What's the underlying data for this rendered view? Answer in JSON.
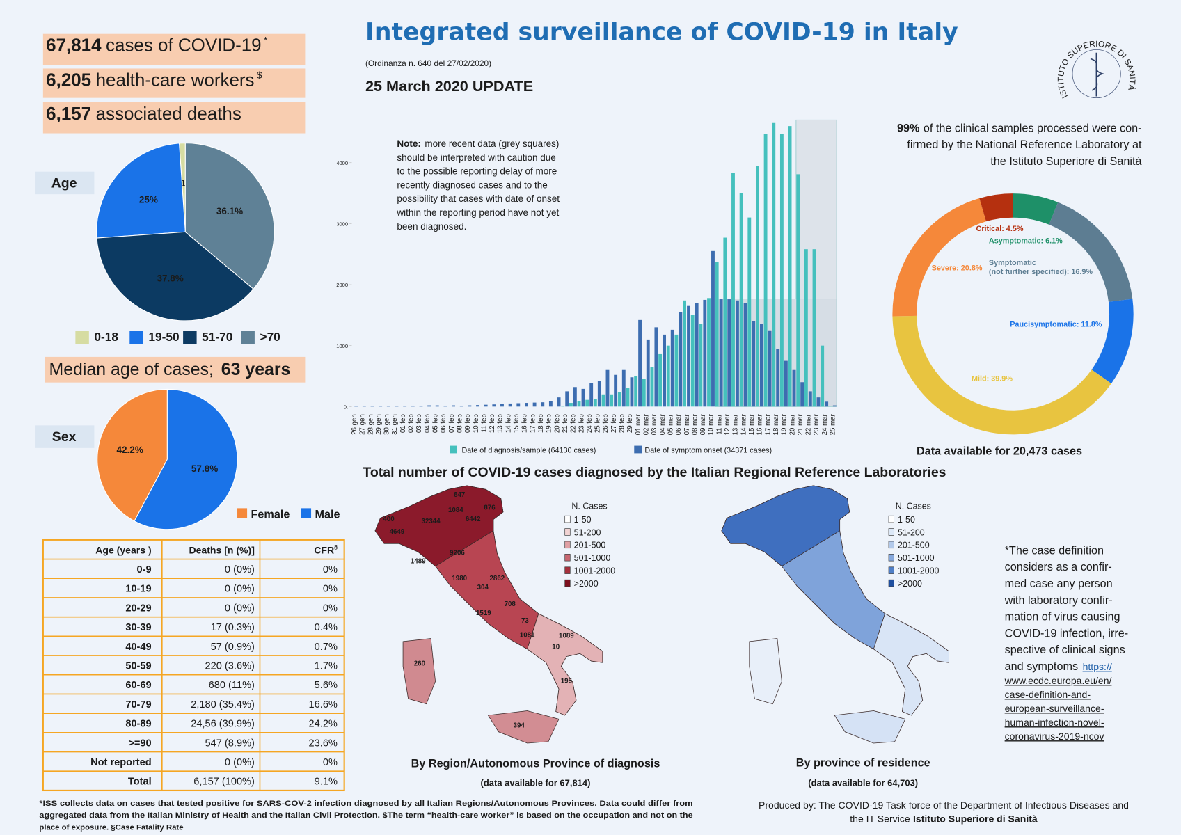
{
  "header": {
    "title": "Integrated surveillance of COVID-19 in Italy",
    "ordinance": "(Ordinanza n. 640 del 27/02/2020)",
    "update": "25 March 2020 UPDATE"
  },
  "logo": {
    "text": "ISTITUTO SUPERIORE DI SANITÀ"
  },
  "stats": [
    {
      "value": "67,814",
      "text": "cases of COVID-19",
      "sup": "*"
    },
    {
      "value": "6,205",
      "text": "health-care workers",
      "sup": "$"
    },
    {
      "value": "6,157",
      "text": "associated deaths"
    }
  ],
  "median_age": {
    "text": "Median age of cases;",
    "value": "63 years"
  },
  "panel_labels": {
    "age": "Age",
    "sex": "Sex"
  },
  "chart_data": [
    {
      "type": "pie",
      "categories": [
        "0-18",
        "19-50",
        "51-70",
        ">70"
      ],
      "values": [
        1.1,
        25,
        37.8,
        36.1
      ],
      "value_labels": [
        "1.1%",
        "25%",
        "37.8%",
        "36.1%"
      ],
      "colors": [
        "#d6dca2",
        "#1a73e8",
        "#0c3a62",
        "#5f8196"
      ]
    },
    {
      "type": "pie",
      "categories": [
        "Female",
        "Male"
      ],
      "values": [
        42.2,
        57.8
      ],
      "value_labels": [
        "42.2%",
        "57.8%"
      ],
      "colors": [
        "#f5883a",
        "#1a73e8"
      ]
    },
    {
      "type": "bar",
      "categories": [
        "26 gen",
        "27 gen",
        "28 gen",
        "29 gen",
        "30 gen",
        "31 gen",
        "01 feb",
        "02 feb",
        "03 feb",
        "04 feb",
        "05 feb",
        "06 feb",
        "07 feb",
        "08 feb",
        "09 feb",
        "10 feb",
        "11 feb",
        "12 feb",
        "13 feb",
        "14 feb",
        "15 feb",
        "16 feb",
        "17 feb",
        "18 feb",
        "19 feb",
        "20 feb",
        "21 feb",
        "22 feb",
        "23 feb",
        "24 feb",
        "25 feb",
        "26 feb",
        "27 feb",
        "28 feb",
        "29 feb",
        "01 mar",
        "02 mar",
        "03 mar",
        "04 mar",
        "05 mar",
        "06 mar",
        "07 mar",
        "08 mar",
        "09 mar",
        "10 mar",
        "11 mar",
        "12 mar",
        "13 mar",
        "14 mar",
        "15 mar",
        "16 mar",
        "17 mar",
        "18 mar",
        "19 mar",
        "20 mar",
        "21 mar",
        "22 mar",
        "23 mar",
        "24 mar",
        "25 mar"
      ],
      "series": [
        {
          "name": "Date of diagnosis/sample (64130 cases)",
          "color": "#45c0bd",
          "values": [
            0,
            0,
            0,
            0,
            0,
            0,
            0,
            0,
            0,
            0,
            0,
            0,
            0,
            0,
            0,
            0,
            0,
            0,
            0,
            0,
            0,
            0,
            0,
            0,
            0,
            0,
            15,
            60,
            90,
            110,
            120,
            200,
            200,
            240,
            300,
            500,
            450,
            650,
            860,
            1000,
            1180,
            1740,
            1500,
            1350,
            1780,
            2370,
            2770,
            3830,
            3500,
            3100,
            3950,
            4470,
            4650,
            4470,
            4600,
            3810,
            2580,
            2580,
            1000,
            0
          ]
        },
        {
          "name": "Date of symptom onset (34371 cases)",
          "color": "#3d6db0",
          "values": [
            5,
            5,
            5,
            5,
            5,
            10,
            10,
            15,
            15,
            20,
            20,
            15,
            20,
            15,
            20,
            25,
            30,
            35,
            40,
            50,
            55,
            60,
            65,
            70,
            90,
            150,
            250,
            320,
            290,
            380,
            420,
            600,
            520,
            600,
            480,
            1420,
            1100,
            1300,
            1180,
            1260,
            1550,
            1650,
            1700,
            1750,
            2550,
            1760,
            1760,
            1740,
            1700,
            1400,
            1350,
            1250,
            950,
            750,
            600,
            400,
            250,
            150,
            80,
            20
          ]
        }
      ],
      "ylim": [
        0,
        4700
      ],
      "yticks": [
        {
          "value": 0,
          "label": "0."
        },
        1000,
        2000,
        3000,
        4000
      ],
      "grid": false,
      "note": {
        "bold": "Note:",
        "lines": [
          "more recent data (grey squares)",
          "should be interpreted with caution due",
          "to the possible reporting delay of more",
          "recently diagnosed cases  and to the",
          "possibility that  cases with date of onset",
          "within the reporting period have not yet",
          "been  diagnosed."
        ]
      }
    },
    {
      "type": "donut",
      "title": "Data available for  20,473 cases",
      "values": [
        4.5,
        6.1,
        16.9,
        11.8,
        39.9,
        20.8
      ],
      "value_labels": [
        "Critical: 4.5%",
        "Asymptomatic: 6.1%",
        "Symptomatic\n(not further specified): 16.9%",
        "Paucisymptomatic: 11.8%",
        "Mild: 39.9%",
        "Severe: 20.8%"
      ],
      "colors": [
        "#b5300f",
        "#1e9068",
        "#5d7d92",
        "#1a73e8",
        "#e8c440",
        "#f5883a"
      ]
    }
  ],
  "lab_note": {
    "bold": "99%",
    "lines": [
      "of the clinical samples processed were con-",
      "firmed by the National Reference Laboratory at",
      "the Istituto Superiore di Sanità"
    ]
  },
  "maps": {
    "title": "Total number of COVID-19 cases diagnosed by the Italian Regional Reference Laboratories",
    "legend_title": "N. Cases",
    "legend": [
      "1-50",
      "51-200",
      "201-500",
      "501-1000",
      "1001-2000",
      ">2000"
    ],
    "region": {
      "caption": "By Region/Autonomous Province of diagnosis",
      "sub": "(data available for 67,814)",
      "labels": [
        "847",
        "1084",
        "876",
        "400",
        "32344",
        "6442",
        "4649",
        "9206",
        "1489",
        "1980",
        "2862",
        "304",
        "708",
        "1519",
        "73",
        "1081",
        "1089",
        "10",
        "260",
        "195",
        "394"
      ]
    },
    "province": {
      "caption": "By province of residence",
      "sub": "(data available for 64,703)"
    }
  },
  "definition": {
    "lines": [
      "*The case definition",
      "considers as a confir-",
      "med case any person",
      "with laboratory confir-",
      "mation of virus causing",
      "COVID-19 infection, irre-",
      "spective of clinical signs",
      "and symptoms"
    ],
    "link_lines": [
      "https://",
      "www.ecdc.europa.eu/en/",
      "case-definition-and-",
      "european-surveillance-",
      "human-infection-novel-",
      "coronavirus-2019-ncov"
    ]
  },
  "table": {
    "header": [
      "Age (years )",
      "Deaths [n (%)]",
      "CFR"
    ],
    "header_sup": "§",
    "rows": [
      [
        "0-9",
        "0 (0%)",
        "0%"
      ],
      [
        "10-19",
        "0 (0%)",
        "0%"
      ],
      [
        "20-29",
        "0 (0%)",
        "0%"
      ],
      [
        "30-39",
        "17 (0.3%)",
        "0.4%"
      ],
      [
        "40-49",
        "57 (0.9%)",
        "0.7%"
      ],
      [
        "50-59",
        "220 (3.6%)",
        "1.7%"
      ],
      [
        "60-69",
        "680 (11%)",
        "5.6%"
      ],
      [
        "70-79",
        "2,180 (35.4%)",
        "16.6%"
      ],
      [
        "80-89",
        "24,56 (39.9%)",
        "24.2%"
      ],
      [
        ">=90",
        "547 (8.9%)",
        "23.6%"
      ],
      [
        "Not reported",
        "0 (0%)",
        "0%"
      ],
      [
        "Total",
        "6,157 (100%)",
        "9.1%"
      ]
    ]
  },
  "footnote": {
    "lines": [
      "*ISS collects data on cases that tested positive for SARS-COV-2  infection diagnosed by all Italian Regions/Autonomous Provinces. Data could differ from",
      "aggregated data from the Italian Ministry of Health and the Italian Civil Protection. $The term “health-care worker” is based on the occupation and not on the",
      "place of exposure. §Case Fatality Rate"
    ]
  },
  "credits": {
    "line": "Produced by:  The COVID-19 Task force of the Department of Infectious Diseases and",
    "prefix": "the IT Service",
    "bold": "Istituto Superiore di Sanità"
  }
}
